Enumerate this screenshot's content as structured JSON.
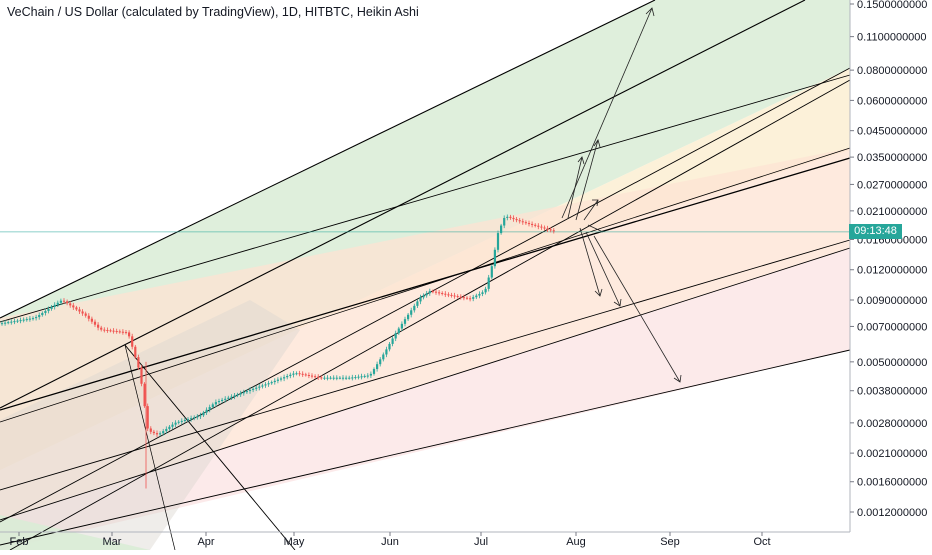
{
  "chart_data": {
    "type": "line",
    "title": "VeChain / US Dollar (calculated by TradingView), 1D, HITBTC, Heikin Ashi",
    "yscale": "log",
    "grid": false,
    "y_tick_labels": [
      "0.1500000000",
      "0.1100000000",
      "0.0800000000",
      "0.0600000000",
      "0.0450000000",
      "0.0350000000",
      "0.0270000000",
      "0.0210000000",
      "0.0160000000",
      "0.0120000000",
      "0.0090000000",
      "0.0070000000",
      "0.0050000000",
      "0.0038000000",
      "0.0028000000",
      "0.0021000000",
      "0.0016000000",
      "0.0012000000"
    ],
    "y_ticks": [
      0.15,
      0.11,
      0.08,
      0.06,
      0.045,
      0.035,
      0.027,
      0.021,
      0.016,
      0.012,
      0.009,
      0.007,
      0.005,
      0.0038,
      0.0028,
      0.0021,
      0.0016,
      0.0012
    ],
    "x_tick_labels": [
      "Feb",
      "Mar",
      "Apr",
      "May",
      "Jun",
      "Jul",
      "Aug",
      "Sep",
      "Oct"
    ],
    "countdown_label": "09:13:48",
    "last_price": 0.0172,
    "colors": {
      "up_candle": "#26a69a",
      "down_candle": "#ef5350",
      "price_line": "#26a69a",
      "trend_line": "#000000",
      "zone_green": "#d9ecd6",
      "zone_yellow": "#fcefd2",
      "zone_orange": "#fde3d3",
      "zone_pink": "#fbe6e6",
      "zone_gray": "#dcd7d0"
    }
  }
}
